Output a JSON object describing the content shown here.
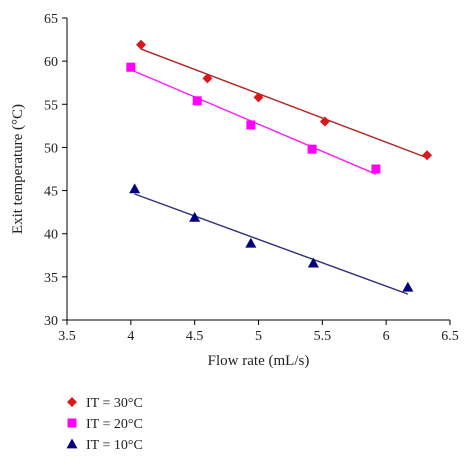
{
  "chart_data": {
    "type": "scatter",
    "xlabel": "Flow rate (mL/s)",
    "ylabel": "Exit temperature (°C)",
    "xlim": [
      3.5,
      6.5
    ],
    "ylim": [
      30,
      65
    ],
    "x_ticks": [
      3.5,
      4,
      4.5,
      5,
      5.5,
      6,
      6.5
    ],
    "y_ticks": [
      30,
      35,
      40,
      45,
      50,
      55,
      60,
      65
    ],
    "x_tick_labels": [
      "3.5",
      "4",
      "4.5",
      "5",
      "5.5",
      "6",
      "6.5"
    ],
    "y_tick_labels": [
      "30",
      "35",
      "40",
      "45",
      "50",
      "55",
      "60",
      "65"
    ],
    "grid": false,
    "legend_position": "bottom-left",
    "series": [
      {
        "name": "IT = 30°C",
        "marker": "diamond",
        "color": "#d7191c",
        "line_color": "#b22222",
        "points": [
          [
            4.08,
            61.9
          ],
          [
            4.6,
            58.0
          ],
          [
            5.0,
            55.8
          ],
          [
            5.52,
            53.0
          ],
          [
            6.32,
            49.1
          ]
        ],
        "trendline": [
          [
            4.08,
            61.4
          ],
          [
            6.32,
            48.8
          ]
        ]
      },
      {
        "name": "IT = 20°C",
        "marker": "square",
        "color": "#ff00ff",
        "line_color": "#ff1aff",
        "points": [
          [
            4.0,
            59.3
          ],
          [
            4.52,
            55.4
          ],
          [
            4.94,
            52.6
          ],
          [
            5.42,
            49.8
          ],
          [
            5.92,
            47.5
          ]
        ],
        "trendline": [
          [
            4.0,
            59.0
          ],
          [
            5.92,
            46.9
          ]
        ]
      },
      {
        "name": "IT = 10°C",
        "marker": "triangle",
        "color": "#000080",
        "line_color": "#2e2e7a",
        "points": [
          [
            4.03,
            45.2
          ],
          [
            4.5,
            41.9
          ],
          [
            4.94,
            38.9
          ],
          [
            5.43,
            36.6
          ],
          [
            6.17,
            33.8
          ]
        ],
        "trendline": [
          [
            4.03,
            44.6
          ],
          [
            6.17,
            33.0
          ]
        ]
      }
    ]
  }
}
